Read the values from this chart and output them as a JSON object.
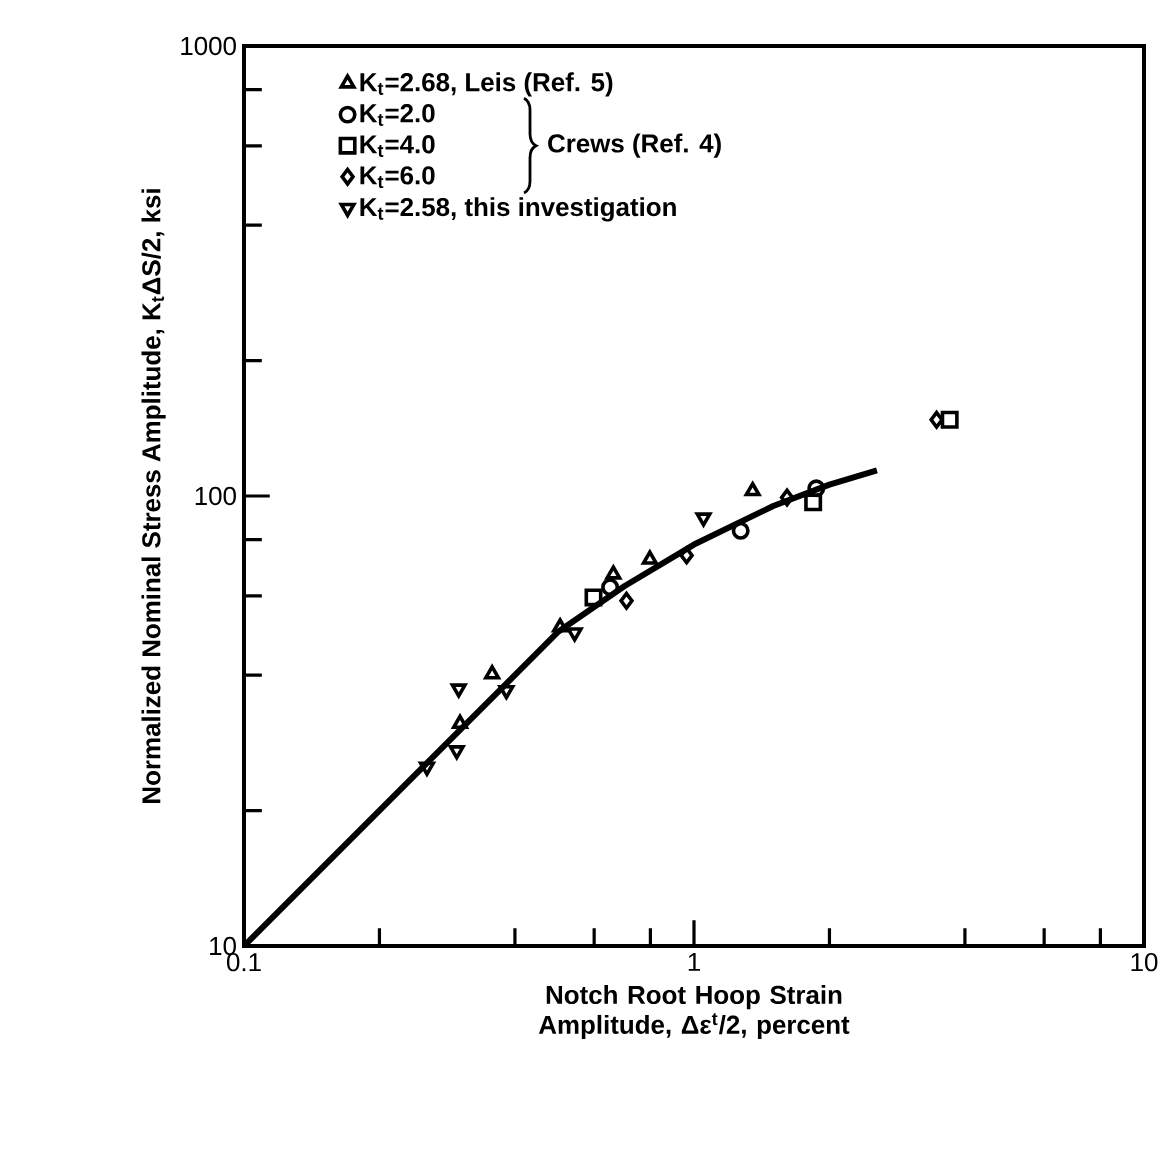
{
  "chart_data": {
    "type": "scatter",
    "xlabel": "Notch Root Hoop Strain Amplitude, Δε$^{t}$/2, percent",
    "ylabel": "Normalized Nominal Stress Amplitude, K$_{t}$ΔS/2, ksi",
    "log": "xy",
    "xlim": [
      0.1,
      10
    ],
    "ylim": [
      10,
      1000
    ],
    "xticks": [
      0.1,
      {
        "value": 0.2,
        "label": null
      },
      {
        "value": 0.4,
        "label": null
      },
      {
        "value": 0.6,
        "label": null
      },
      {
        "value": 0.8,
        "label": null
      },
      1,
      {
        "value": 2,
        "label": null
      },
      {
        "value": 4,
        "label": null
      },
      {
        "value": 6,
        "label": null
      },
      {
        "value": 8,
        "label": null
      },
      10
    ],
    "yticks": [
      10,
      {
        "value": 20,
        "label": null
      },
      {
        "value": 40,
        "label": null
      },
      {
        "value": 60,
        "label": null
      },
      {
        "value": 80,
        "label": null
      },
      100,
      {
        "value": 200,
        "label": null
      },
      {
        "value": 400,
        "label": null
      },
      {
        "value": 600,
        "label": null
      },
      {
        "value": 800,
        "label": null
      },
      1000
    ],
    "grid": false,
    "legend": "top left",
    "annotations": [
      "Crews (Ref. 4)"
    ],
    "series": [
      {
        "name": "K$_{t}$=2.68, Leis (Ref. 5)",
        "color": "#000000",
        "marker": "triangle",
        "x": [
          0.302,
          0.356,
          0.504,
          0.662,
          0.798,
          1.35
        ],
        "values": [
          31.2,
          40.2,
          51.1,
          67,
          72.3,
          102.6
        ]
      },
      {
        "name": "K$_{t}$=2.0",
        "color": "#000000",
        "marker": "circle",
        "x": [
          0.651,
          1.27,
          1.87
        ],
        "values": [
          62.7,
          83.7,
          104
        ]
      },
      {
        "name": "K$_{t}$=4.0",
        "color": "#000000",
        "marker": "square",
        "x": [
          0.598,
          1.84,
          3.7
        ],
        "values": [
          59.5,
          96.8,
          147.7
        ]
      },
      {
        "name": "K$_{t}$=6.0",
        "color": "#000000",
        "marker": "diamond",
        "x": [
          0.708,
          0.963,
          1.61,
          3.46
        ],
        "values": [
          58.5,
          73.8,
          99.2,
          147.7
        ]
      },
      {
        "name": "K$_{t}$=2.58, this investigation",
        "color": "#000000",
        "marker": "triangle_down",
        "x": [
          0.255,
          0.297,
          0.3,
          0.383,
          0.543,
          1.05
        ],
        "values": [
          25,
          27.2,
          37.3,
          37,
          49.7,
          89.5
        ]
      },
      {
        "type": "line",
        "color": "#000000",
        "marker": "none",
        "line_style": "solid",
        "x": [
          0.1,
          0.5,
          0.7,
          1.0,
          1.5,
          2.0,
          2.55
        ],
        "values": [
          10,
          50,
          63,
          78,
          95,
          106,
          114
        ]
      }
    ]
  }
}
